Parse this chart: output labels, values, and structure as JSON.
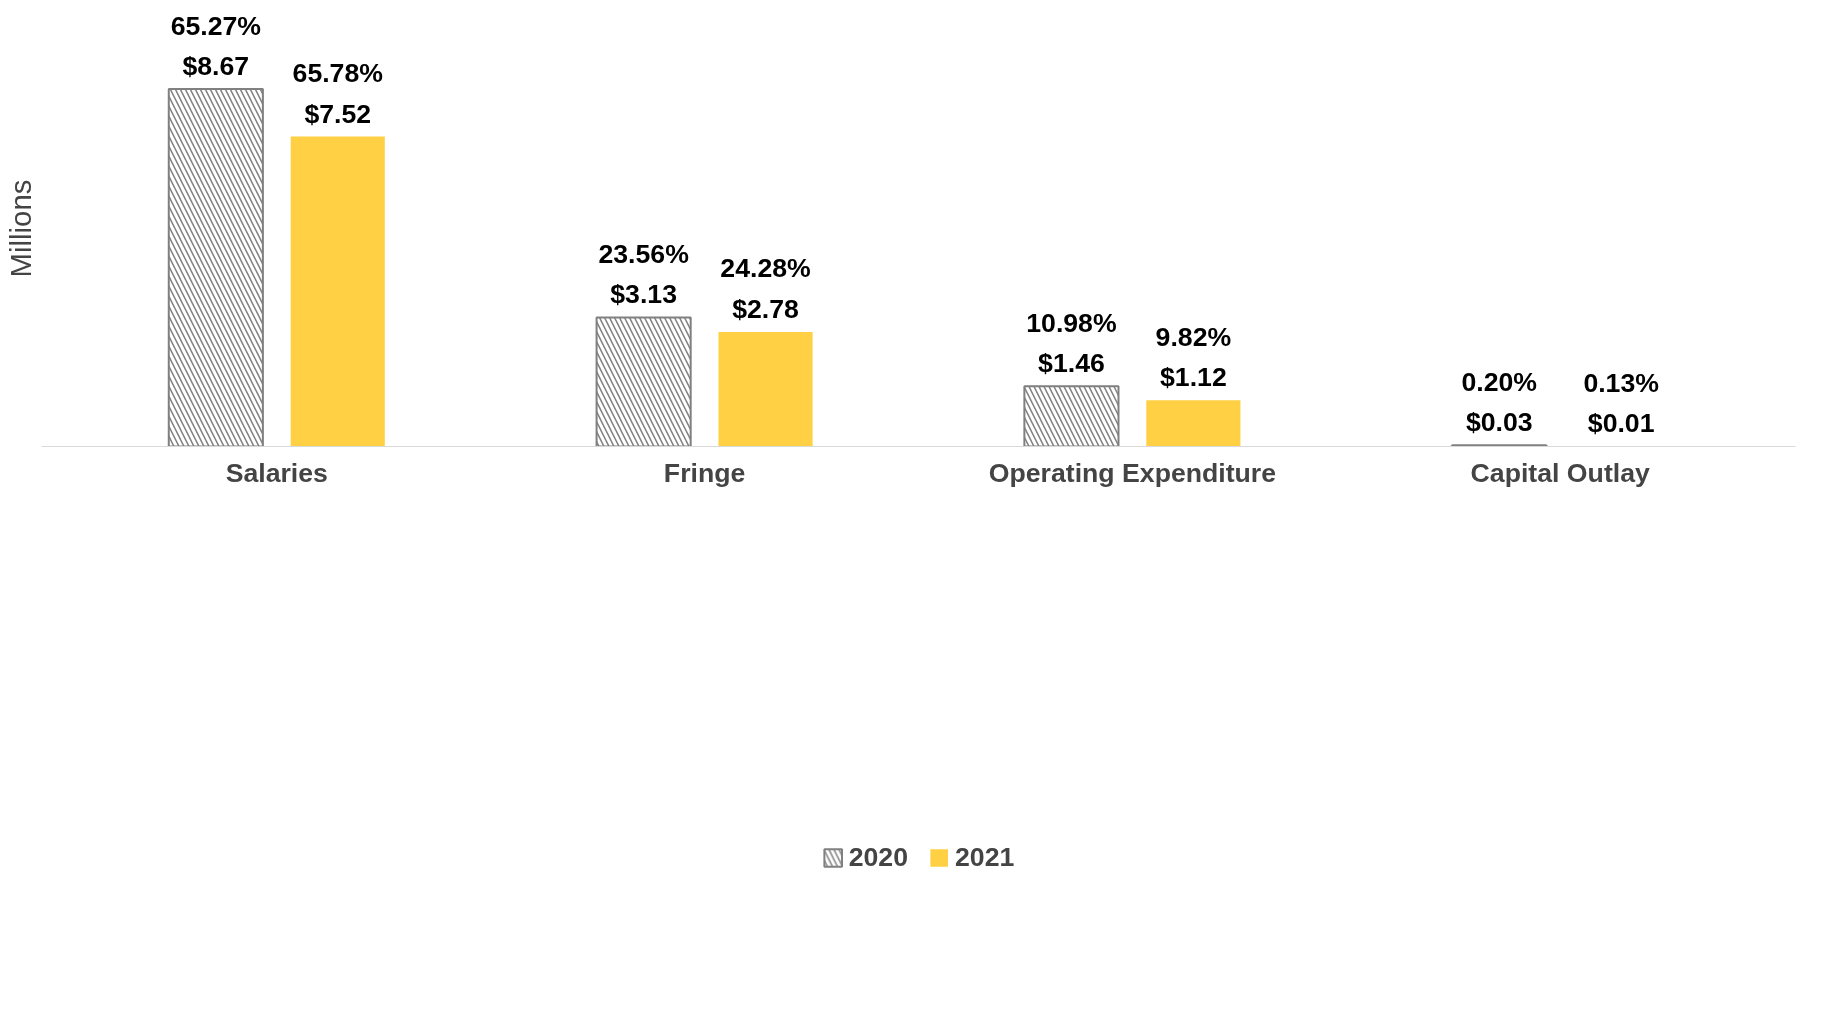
{
  "chart_data": {
    "type": "bar",
    "ylabel": "Millions",
    "categories": [
      "Salaries",
      "Fringe",
      "Operating Expenditure",
      "Capital Outlay"
    ],
    "series": [
      {
        "name": "2020",
        "color": "#808080",
        "values": [
          8.67,
          3.13,
          1.46,
          0.03
        ],
        "value_labels": [
          "65.27%\n$8.67",
          "23.56%\n$3.13",
          "10.98%\n$1.46",
          "0.20%\n$0.03"
        ]
      },
      {
        "name": "2021",
        "color": "#ffd043",
        "values": [
          7.52,
          2.78,
          1.12,
          0.01
        ],
        "value_labels": [
          "65.78%\n$7.52",
          "24.28%\n$2.78",
          "9.82%\n$1.12",
          "0.13%\n$0.01"
        ]
      }
    ],
    "legend": "bottom",
    "grid": false
  }
}
